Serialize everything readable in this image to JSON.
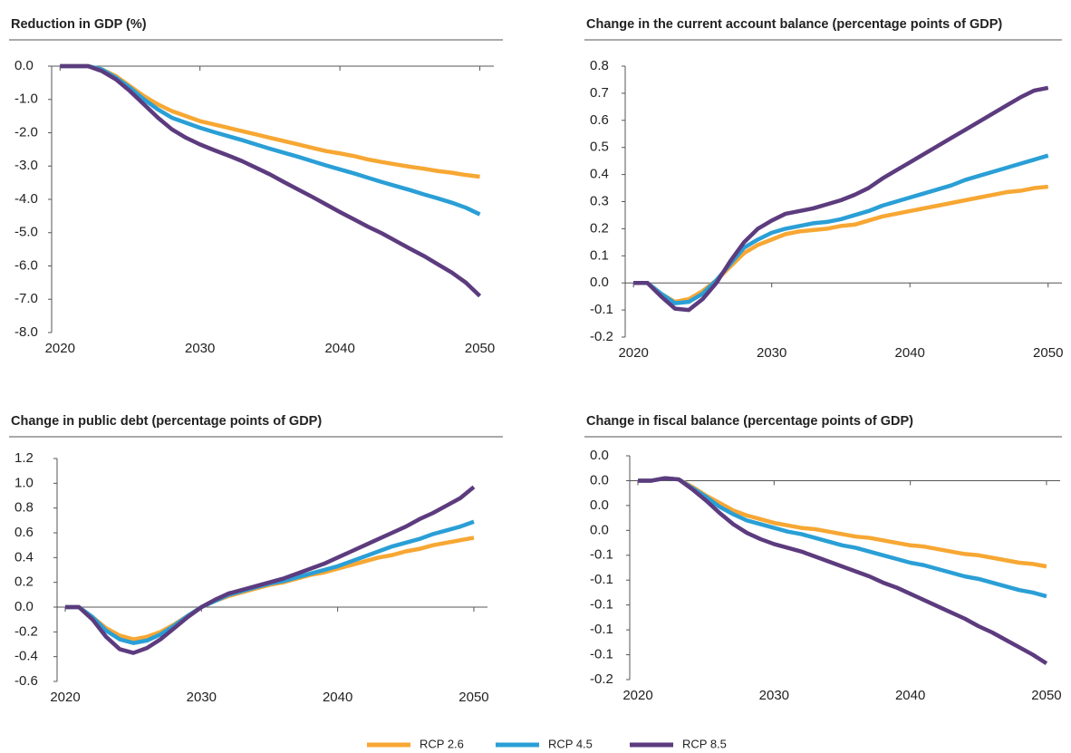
{
  "chart_data": [
    {
      "type": "line",
      "title": "Reduction in GDP (%)",
      "x": [
        2020,
        2021,
        2022,
        2023,
        2024,
        2025,
        2026,
        2027,
        2028,
        2029,
        2030,
        2031,
        2032,
        2033,
        2034,
        2035,
        2036,
        2037,
        2038,
        2039,
        2040,
        2041,
        2042,
        2043,
        2044,
        2045,
        2046,
        2047,
        2048,
        2049,
        2050
      ],
      "xlim": [
        2019.4,
        2051
      ],
      "xticks": [
        2020,
        2030,
        2040,
        2050
      ],
      "ylim": [
        -8,
        0
      ],
      "yticks": [
        {
          "value": 0,
          "label": "0.0"
        },
        {
          "value": -1,
          "label": "-1.0"
        },
        {
          "value": -2,
          "label": "-2.0"
        },
        {
          "value": -3,
          "label": "-3.0"
        },
        {
          "value": -4,
          "label": "-4.0"
        },
        {
          "value": -5,
          "label": "-5.0"
        },
        {
          "value": -6,
          "label": "-6.0"
        },
        {
          "value": -7,
          "label": "-7.0"
        },
        {
          "value": -8,
          "label": "-8.0"
        }
      ],
      "series": [
        {
          "values": [
            0,
            0,
            0,
            -0.1,
            -0.3,
            -0.6,
            -0.9,
            -1.15,
            -1.35,
            -1.5,
            -1.65,
            -1.75,
            -1.85,
            -1.95,
            -2.05,
            -2.15,
            -2.25,
            -2.35,
            -2.45,
            -2.55,
            -2.62,
            -2.7,
            -2.8,
            -2.88,
            -2.95,
            -3.02,
            -3.08,
            -3.15,
            -3.2,
            -3.27,
            -3.32
          ]
        },
        {
          "values": [
            0,
            0,
            0,
            -0.1,
            -0.35,
            -0.65,
            -1.0,
            -1.3,
            -1.55,
            -1.7,
            -1.85,
            -1.98,
            -2.1,
            -2.22,
            -2.35,
            -2.48,
            -2.6,
            -2.72,
            -2.85,
            -2.98,
            -3.1,
            -3.22,
            -3.35,
            -3.48,
            -3.6,
            -3.72,
            -3.85,
            -3.97,
            -4.1,
            -4.25,
            -4.45
          ]
        },
        {
          "values": [
            0,
            0,
            0,
            -0.15,
            -0.4,
            -0.75,
            -1.15,
            -1.55,
            -1.9,
            -2.15,
            -2.35,
            -2.52,
            -2.68,
            -2.85,
            -3.05,
            -3.25,
            -3.48,
            -3.7,
            -3.92,
            -4.15,
            -4.38,
            -4.6,
            -4.82,
            -5.02,
            -5.25,
            -5.48,
            -5.7,
            -5.95,
            -6.2,
            -6.5,
            -6.9
          ]
        }
      ]
    },
    {
      "type": "line",
      "title": "Change in the current account balance (percentage points of GDP)",
      "x": [
        2020,
        2021,
        2022,
        2023,
        2024,
        2025,
        2026,
        2027,
        2028,
        2029,
        2030,
        2031,
        2032,
        2033,
        2034,
        2035,
        2036,
        2037,
        2038,
        2039,
        2040,
        2041,
        2042,
        2043,
        2044,
        2045,
        2046,
        2047,
        2048,
        2049,
        2050
      ],
      "xlim": [
        2019.4,
        2051
      ],
      "xticks": [
        2020,
        2030,
        2040,
        2050
      ],
      "ylim": [
        -0.2,
        0.8
      ],
      "yticks": [
        -0.2,
        -0.1,
        {
          "value": 0,
          "label": "0.0"
        },
        0.1,
        0.2,
        0.3,
        0.4,
        0.5,
        0.6,
        0.7,
        0.8
      ],
      "series": [
        {
          "values": [
            0,
            0,
            -0.04,
            -0.07,
            -0.06,
            -0.03,
            0.01,
            0.06,
            0.11,
            0.14,
            0.16,
            0.18,
            0.19,
            0.195,
            0.2,
            0.21,
            0.215,
            0.23,
            0.245,
            0.255,
            0.265,
            0.275,
            0.285,
            0.295,
            0.305,
            0.315,
            0.325,
            0.335,
            0.34,
            0.35,
            0.355
          ]
        },
        {
          "values": [
            0,
            0,
            -0.04,
            -0.075,
            -0.07,
            -0.04,
            0.01,
            0.07,
            0.13,
            0.16,
            0.185,
            0.2,
            0.21,
            0.22,
            0.225,
            0.235,
            0.25,
            0.265,
            0.285,
            0.3,
            0.315,
            0.33,
            0.345,
            0.36,
            0.38,
            0.395,
            0.41,
            0.425,
            0.44,
            0.455,
            0.47
          ]
        },
        {
          "values": [
            0,
            0,
            -0.05,
            -0.095,
            -0.1,
            -0.06,
            0,
            0.08,
            0.15,
            0.2,
            0.23,
            0.255,
            0.265,
            0.275,
            0.29,
            0.305,
            0.325,
            0.35,
            0.385,
            0.415,
            0.445,
            0.475,
            0.505,
            0.535,
            0.565,
            0.595,
            0.625,
            0.655,
            0.685,
            0.71,
            0.72
          ]
        }
      ]
    },
    {
      "type": "line",
      "title": "Change in public debt (percentage points of GDP)",
      "x": [
        2020,
        2021,
        2022,
        2023,
        2024,
        2025,
        2026,
        2027,
        2028,
        2029,
        2030,
        2031,
        2032,
        2033,
        2034,
        2035,
        2036,
        2037,
        2038,
        2039,
        2040,
        2041,
        2042,
        2043,
        2044,
        2045,
        2046,
        2047,
        2048,
        2049,
        2050
      ],
      "xlim": [
        2019.4,
        2051
      ],
      "xticks": [
        2020,
        2030,
        2040,
        2050
      ],
      "ylim": [
        -0.6,
        1.2
      ],
      "yticks": [
        -0.6,
        -0.4,
        -0.2,
        {
          "value": 0,
          "label": "0.0"
        },
        0.2,
        0.4,
        0.6,
        0.8,
        {
          "value": 1,
          "label": "1.0"
        },
        1.2
      ],
      "series": [
        {
          "values": [
            0,
            0,
            -0.08,
            -0.17,
            -0.23,
            -0.26,
            -0.24,
            -0.2,
            -0.14,
            -0.07,
            0,
            0.05,
            0.09,
            0.12,
            0.15,
            0.18,
            0.2,
            0.23,
            0.26,
            0.28,
            0.31,
            0.34,
            0.37,
            0.4,
            0.42,
            0.45,
            0.47,
            0.5,
            0.52,
            0.54,
            0.56
          ]
        },
        {
          "values": [
            0,
            0,
            -0.08,
            -0.19,
            -0.26,
            -0.29,
            -0.27,
            -0.22,
            -0.15,
            -0.07,
            0,
            0.05,
            0.1,
            0.13,
            0.16,
            0.19,
            0.21,
            0.24,
            0.27,
            0.3,
            0.33,
            0.37,
            0.41,
            0.45,
            0.49,
            0.52,
            0.55,
            0.59,
            0.62,
            0.65,
            0.69
          ]
        },
        {
          "values": [
            0,
            0,
            -0.1,
            -0.24,
            -0.34,
            -0.37,
            -0.33,
            -0.26,
            -0.17,
            -0.08,
            0,
            0.06,
            0.11,
            0.14,
            0.17,
            0.2,
            0.23,
            0.27,
            0.31,
            0.35,
            0.4,
            0.45,
            0.5,
            0.55,
            0.6,
            0.65,
            0.71,
            0.76,
            0.82,
            0.88,
            0.97
          ]
        }
      ]
    },
    {
      "type": "line",
      "title": "Change in fiscal balance (percentage points of GDP)",
      "x": [
        2020,
        2021,
        2022,
        2023,
        2024,
        2025,
        2026,
        2027,
        2028,
        2029,
        2030,
        2031,
        2032,
        2033,
        2034,
        2035,
        2036,
        2037,
        2038,
        2039,
        2040,
        2041,
        2042,
        2043,
        2044,
        2045,
        2046,
        2047,
        2048,
        2049,
        2050
      ],
      "xlim": [
        2019.4,
        2051
      ],
      "xticks": [
        2020,
        2030,
        2040,
        2050
      ],
      "ylim": [
        -0.16,
        0.02
      ],
      "yticks": [
        {
          "value": 0.02,
          "label": "0.0"
        },
        {
          "value": 0,
          "label": "0.0"
        },
        {
          "value": -0.02,
          "label": "0.0"
        },
        {
          "value": -0.04,
          "label": "0.0"
        },
        {
          "value": -0.06,
          "label": "-0.1"
        },
        {
          "value": -0.08,
          "label": "-0.1"
        },
        {
          "value": -0.1,
          "label": "-0.1"
        },
        {
          "value": -0.12,
          "label": "-0.1"
        },
        {
          "value": -0.14,
          "label": "-0.1"
        },
        {
          "value": -0.16,
          "label": "-0.2"
        }
      ],
      "series": [
        {
          "values": [
            0,
            0,
            0.002,
            0.001,
            -0.005,
            -0.012,
            -0.018,
            -0.024,
            -0.028,
            -0.031,
            -0.034,
            -0.036,
            -0.038,
            -0.039,
            -0.041,
            -0.043,
            -0.045,
            -0.046,
            -0.048,
            -0.05,
            -0.052,
            -0.053,
            -0.055,
            -0.057,
            -0.059,
            -0.06,
            -0.062,
            -0.064,
            -0.066,
            -0.067,
            -0.069
          ]
        },
        {
          "values": [
            0,
            0,
            0.002,
            0.001,
            -0.006,
            -0.013,
            -0.021,
            -0.027,
            -0.032,
            -0.035,
            -0.038,
            -0.041,
            -0.043,
            -0.046,
            -0.049,
            -0.052,
            -0.054,
            -0.057,
            -0.06,
            -0.063,
            -0.066,
            -0.068,
            -0.071,
            -0.074,
            -0.077,
            -0.079,
            -0.082,
            -0.085,
            -0.088,
            -0.09,
            -0.093
          ]
        },
        {
          "values": [
            0,
            0,
            0.002,
            0.001,
            -0.007,
            -0.016,
            -0.026,
            -0.035,
            -0.042,
            -0.047,
            -0.051,
            -0.054,
            -0.057,
            -0.061,
            -0.065,
            -0.069,
            -0.073,
            -0.077,
            -0.082,
            -0.086,
            -0.091,
            -0.096,
            -0.101,
            -0.106,
            -0.111,
            -0.117,
            -0.122,
            -0.128,
            -0.134,
            -0.14,
            -0.147
          ]
        }
      ]
    }
  ],
  "legend": [
    {
      "name": "RCP 2.6",
      "color": "#f7a733"
    },
    {
      "name": "RCP 4.5",
      "color": "#2a9fd6"
    },
    {
      "name": "RCP 8.5",
      "color": "#5c3b7e"
    }
  ]
}
